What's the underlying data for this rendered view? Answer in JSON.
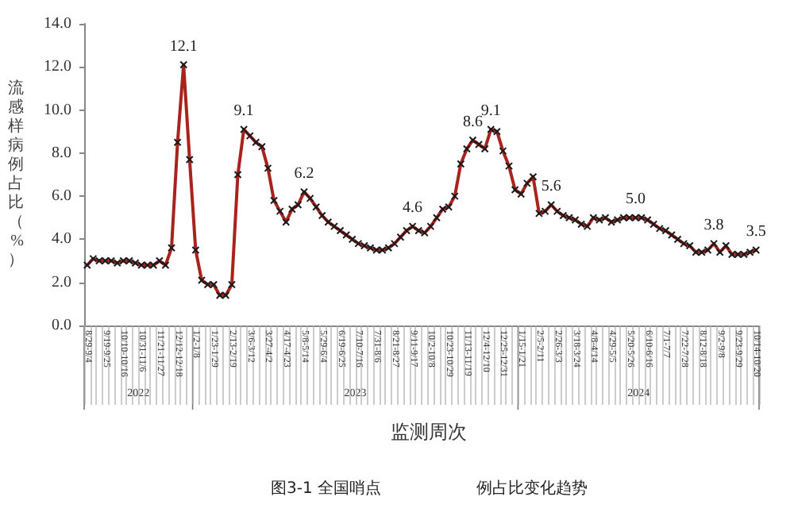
{
  "chart_data": {
    "type": "line",
    "xlabel": "监测周次",
    "ylabel": "流感样病例占比（%）",
    "categories": [
      "8/29-9/4",
      null,
      null,
      "9/19-9/25",
      null,
      null,
      "10/10-10/16",
      null,
      null,
      "10/31-11/6",
      null,
      null,
      "11/21-11/27",
      null,
      null,
      "12/12-12/18",
      null,
      null,
      "1/2-1/8",
      null,
      null,
      "1/23-1/29",
      null,
      null,
      "2/13-2/19",
      null,
      null,
      "3/6-3/12",
      null,
      null,
      "3/27-4/2",
      null,
      null,
      "4/17-4/23",
      null,
      null,
      "5/8-5/14",
      null,
      null,
      "5/29-6/4",
      null,
      null,
      "6/19-6/25",
      null,
      null,
      "7/10-7/16",
      null,
      null,
      "7/31-8/6",
      null,
      null,
      "8/21-8/27",
      null,
      null,
      "9/11-9/17",
      null,
      null,
      "10/2-10/8",
      null,
      null,
      "10/23-10/29",
      null,
      null,
      "11/13-11/19",
      null,
      null,
      "12/4-12/10",
      null,
      null,
      "12/25-12/31",
      null,
      null,
      "1/15-1/21",
      null,
      null,
      "2/5-2/11",
      null,
      null,
      "2/26-3/3",
      null,
      null,
      "3/18-3/24",
      null,
      null,
      "4/8-4/14",
      null,
      null,
      "4/29-5/5",
      null,
      null,
      "5/20-5/26",
      null,
      null,
      "6/10-6/16",
      null,
      null,
      "7/1-7/7",
      null,
      null,
      "7/22-7/28",
      null,
      null,
      "8/12-8/18",
      null,
      null,
      "9/2-9/8",
      null,
      null,
      "9/23-9/29",
      null,
      null,
      "10/14-10/20"
    ],
    "series": [
      {
        "color": "#a8231e",
        "values": [
          2.8,
          3.1,
          3.0,
          3.0,
          3.0,
          2.9,
          3.0,
          3.0,
          2.9,
          2.8,
          2.8,
          2.8,
          3.0,
          2.8,
          3.6,
          8.5,
          12.1,
          7.7,
          3.5,
          2.1,
          1.9,
          1.9,
          1.4,
          1.4,
          1.9,
          7.0,
          9.1,
          8.8,
          8.5,
          8.3,
          7.3,
          5.8,
          5.3,
          4.8,
          5.4,
          5.6,
          6.2,
          5.9,
          5.5,
          5.1,
          4.8,
          4.6,
          4.4,
          4.2,
          4.0,
          3.8,
          3.7,
          3.6,
          3.5,
          3.5,
          3.6,
          3.8,
          4.1,
          4.4,
          4.6,
          4.4,
          4.3,
          4.6,
          5.0,
          5.4,
          5.5,
          6.0,
          7.5,
          8.2,
          8.6,
          8.4,
          8.2,
          9.1,
          9.0,
          8.1,
          7.4,
          6.3,
          6.1,
          6.6,
          6.9,
          5.2,
          5.3,
          5.6,
          5.3,
          5.1,
          5.0,
          4.9,
          4.7,
          4.6,
          5.0,
          4.9,
          5.0,
          4.8,
          4.9,
          5.0,
          5.0,
          5.0,
          5.0,
          4.9,
          4.7,
          4.5,
          4.4,
          4.2,
          4.0,
          3.8,
          3.7,
          3.4,
          3.4,
          3.5,
          3.8,
          3.4,
          3.7,
          3.3,
          3.3,
          3.3,
          3.4,
          3.5
        ],
        "value_labels": [
          null,
          null,
          null,
          null,
          null,
          null,
          null,
          null,
          null,
          null,
          null,
          null,
          null,
          null,
          null,
          null,
          "12.1",
          null,
          null,
          null,
          null,
          null,
          null,
          null,
          null,
          null,
          "9.1",
          null,
          null,
          null,
          null,
          null,
          null,
          null,
          null,
          null,
          "6.2",
          null,
          null,
          null,
          null,
          null,
          null,
          null,
          null,
          null,
          null,
          null,
          null,
          null,
          null,
          null,
          null,
          null,
          "4.6",
          null,
          null,
          null,
          null,
          null,
          null,
          null,
          null,
          null,
          "8.6",
          null,
          null,
          "9.1",
          null,
          null,
          null,
          null,
          null,
          null,
          null,
          null,
          null,
          "5.6",
          null,
          null,
          null,
          null,
          null,
          null,
          null,
          null,
          null,
          null,
          null,
          null,
          null,
          "5.0",
          null,
          null,
          null,
          null,
          null,
          null,
          null,
          null,
          null,
          null,
          null,
          null,
          "3.8",
          null,
          null,
          null,
          null,
          null,
          null,
          "3.5"
        ]
      }
    ],
    "ylim": [
      0,
      14
    ],
    "yticks": [
      {
        "value": 0,
        "label": "0.0"
      },
      {
        "value": 2,
        "label": "2.0"
      },
      {
        "value": 4,
        "label": "4.0"
      },
      {
        "value": 6,
        "label": "6.0"
      },
      {
        "value": 8,
        "label": "8.0"
      },
      {
        "value": 10,
        "label": "10.0"
      },
      {
        "value": 12,
        "label": "12.0"
      },
      {
        "value": 14,
        "label": "14.0"
      }
    ],
    "grid": false,
    "marker": "cross",
    "line_style": "solid",
    "annotations": [
      "2022",
      "2023",
      "2024",
      "图3-1 全国哨点",
      "例占比变化趋势"
    ]
  }
}
